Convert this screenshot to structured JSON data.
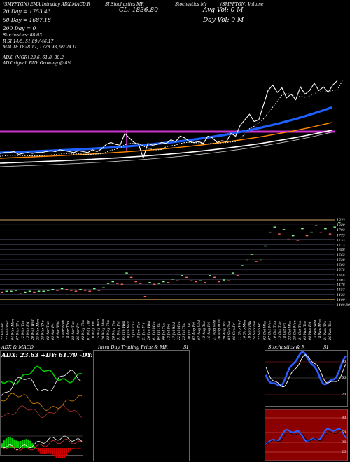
{
  "header": {
    "row1": "(SMFPTGN) EMA Intraday ADX,MACD,R",
    "row1b": "SI,Stochastics MR",
    "row1c": "Stochastics Mr",
    "row1d": "(SMFPTGN) Volume",
    "cl": "CL: 1836.80",
    "avg_vol": "Avg Vol: 0  M",
    "day_vol": "Day Vol: 0   M",
    "ema20": "20  Day = 1753.43",
    "ema50": "50  Day = 1687.18",
    "ema200": "200  Day = 0",
    "stochastics": "Stochastics: 88.63",
    "rsi": "R                    SI 14/5: 51.89 / 46.17",
    "macd": "MACD: 1828.17,  1728.93, 99.24  D",
    "adx": "ADX:                         (MGR) 23.6,  61.8,  38.2",
    "adx_signal": "ADX  signal:                                       BUY Growing @ 8%"
  },
  "panels": {
    "adx_title": "ADX  & MACD",
    "adx_values": "ADX: 23.63 +DY: 61.79 -DY: 38.17",
    "intraday_title": "Intra  Day Trading Price  & MR",
    "intraday_si": "SI",
    "stoch_title": "Stochastics & R",
    "stoch_si": "SI",
    "stoch_levels": [
      "80",
      "50",
      "20"
    ],
    "rsi_levels": [
      "80",
      "50",
      "30",
      "20"
    ]
  },
  "colors": {
    "price": "#ffffff",
    "ema20": "#1e5fff",
    "ema50": "#ff8a00",
    "ema200": "#ffffff",
    "magenta": "#cc33cc",
    "rsi_bg": "#8b0000",
    "stoch_line": "#2d5bff"
  },
  "chart_data": {
    "type": "line",
    "title": "",
    "price_series_y": [
      -0.07,
      -0.06,
      -0.06,
      -0.05,
      -0.08,
      -0.07,
      -0.06,
      -0.07,
      -0.06,
      -0.06,
      -0.05,
      -0.04,
      -0.05,
      -0.03,
      -0.04,
      -0.05,
      -0.06,
      -0.04,
      -0.05,
      -0.06,
      -0.03,
      -0.05,
      -0.02,
      0.03,
      0.05,
      0.03,
      0.02,
      0.15,
      0.1,
      0.05,
      0.03,
      -0.12,
      0.04,
      0.02,
      0.03,
      0.05,
      0.04,
      0.08,
      0.06,
      0.12,
      0.1,
      0.06,
      0.05,
      0.06,
      0.04,
      0.12,
      0.1,
      0.05,
      0.07,
      0.06,
      0.15,
      0.12,
      0.24,
      0.3,
      0.36,
      0.28,
      0.3,
      0.46,
      0.62,
      0.68,
      0.6,
      0.65,
      0.54,
      0.58,
      0.52,
      0.66,
      0.58,
      0.62,
      0.7,
      0.62,
      0.66,
      0.6,
      0.68,
      0.73
    ],
    "levels_y": [
      "1833",
      "1820",
      "1793",
      "1773",
      "1733",
      "1713",
      "1688",
      "1663",
      "1638",
      "1603",
      "1578",
      "1548",
      "1503",
      "1478",
      "1453",
      "1433",
      "1409",
      "1409.80"
    ],
    "x_ticks": [
      "22 Feb Fri",
      "27 Feb Wed",
      "04 Mar Mon",
      "07 Mar Thu",
      "12 Mar Tue",
      "15 Mar Fri",
      "20 Mar Wed",
      "25 Mar Mon",
      "28 Mar Thu",
      "02 Apr Tue",
      "05 Apr Fri",
      "10 Apr Wed",
      "15 Apr Mon",
      "18 Apr Thu",
      "23 Apr Tue",
      "26 Apr Fri",
      "02 May Thu",
      "07 May Tue",
      "10 May Fri",
      "15 May Wed",
      "20 May Mon",
      "23 May Thu",
      "28 May Tue",
      "31 May Fri",
      "05 Jun Wed",
      "10 Jun Mon",
      "13 Jun Thu",
      "18 Jun Tue",
      "21 Jun Fri",
      "26 Jun Wed",
      "01 Jul Mon",
      "04 Jul Thu",
      "09 Jul Tue",
      "12 Jul Fri",
      "17 Jul Wed",
      "22 Jul Mon",
      "25 Jul Thu",
      "30 Jul Tue",
      "02 Aug Fri",
      "07 Aug Wed",
      "13 Aug Tue",
      "16 Aug Fri",
      "21 Aug Wed",
      "26 Aug Mon",
      "29 Aug Thu",
      "03 Sep Tue",
      "06 Sep Fri",
      "11 Sep Wed",
      "16 Sep Mon",
      "19 Sep Thu",
      "24 Sep Tue",
      "27 Sep Fri",
      "02 Oct Wed",
      "07 Oct Mon",
      "10 Oct Thu",
      "15 Oct Tue",
      "18 Oct Fri",
      "23 Oct Wed",
      "28 Oct Mon",
      "31 Oct Thu",
      "05 Nov Tue",
      "08 Nov Fri",
      "13 Nov Wed",
      "18 Nov Mon",
      "21 Nov Thu",
      "26 Nov Tue"
    ]
  }
}
